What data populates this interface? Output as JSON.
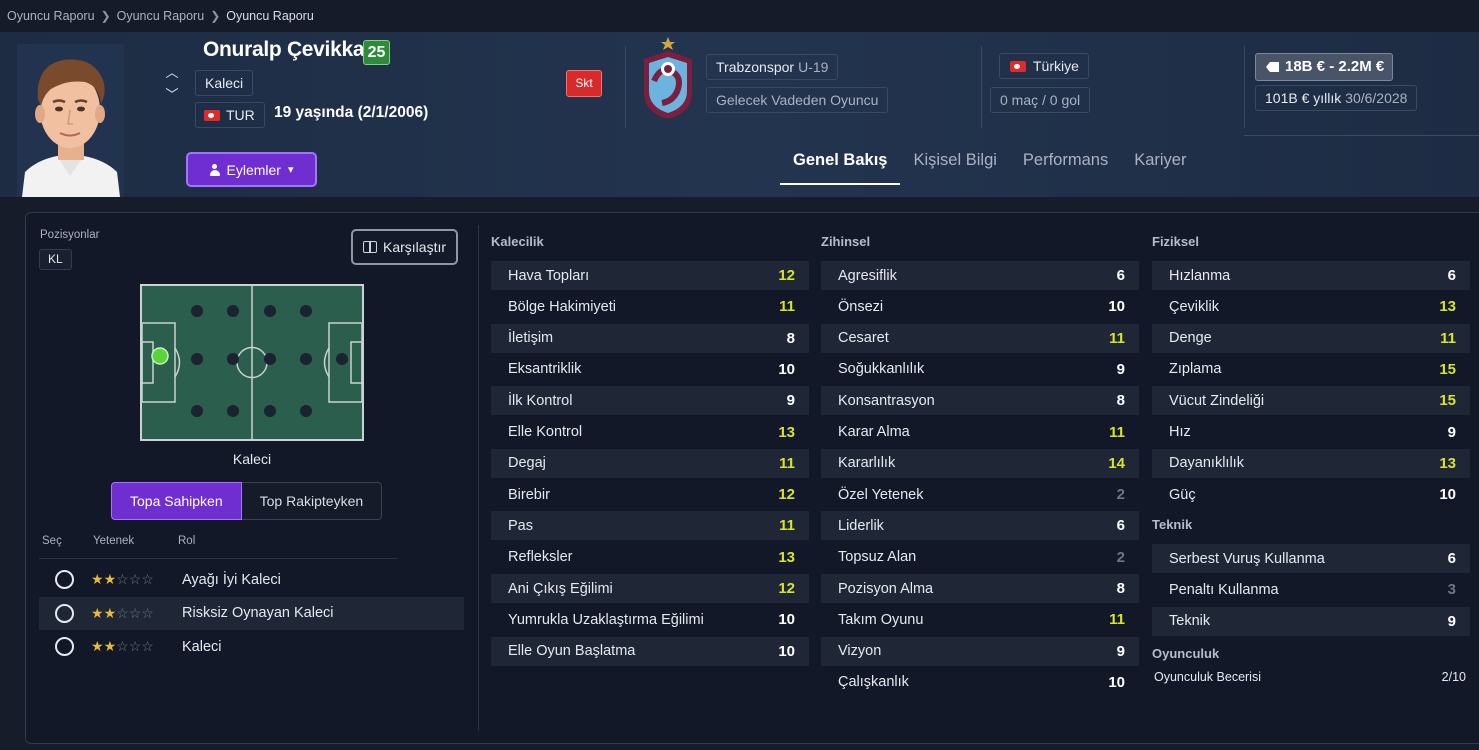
{
  "breadcrumb": [
    "Oyuncu Raporu",
    "Oyuncu Raporu",
    "Oyuncu Raporu"
  ],
  "player": {
    "name": "Onuralp Çevikkan",
    "ca": "25",
    "position": "Kaleci",
    "nationality_code": "TUR",
    "age_text": "19 yaşında (2/1/2006)",
    "injury_badge": "Skt",
    "club": "Trabzonspor",
    "squad": "U-19",
    "status": "Gelecek Vadeden Oyuncu",
    "country": "Türkiye",
    "apps": "0 maç / 0 gol",
    "value": "18B € - 2.2M €",
    "wage": "101B € yıllık",
    "contract_end": "30/6/2028"
  },
  "actions_label": "Eylemler",
  "tabs": [
    "Genel Bakış",
    "Kişisel Bilgi",
    "Performans",
    "Kariyer"
  ],
  "positions": {
    "label": "Pozisyonlar",
    "chip": "KL",
    "compare_label": "Karşılaştır",
    "pitch_label": "Kaleci"
  },
  "toggle": [
    "Topa Sahipken",
    "Top Rakipteyken"
  ],
  "roles": {
    "headers": [
      "Seç",
      "Yetenek",
      "Rol"
    ],
    "items": [
      {
        "name": "Ayağı İyi Kaleci",
        "stars": 2,
        "max": 5
      },
      {
        "name": "Risksiz Oynayan Kaleci",
        "stars": 2,
        "max": 5
      },
      {
        "name": "Kaleci",
        "stars": 2,
        "max": 5
      }
    ]
  },
  "colors": {
    "accent": "#6e2ed0",
    "high": "#d7e52f",
    "normal": "#ffffff",
    "low": "#6d7688"
  },
  "attributes": {
    "goalkeeping": {
      "title": "Kalecilik",
      "items": [
        {
          "name": "Hava Topları",
          "value": "12"
        },
        {
          "name": "Bölge Hakimiyeti",
          "value": "11"
        },
        {
          "name": "İletişim",
          "value": "8"
        },
        {
          "name": "Eksantriklik",
          "value": "10"
        },
        {
          "name": "İlk Kontrol",
          "value": "9"
        },
        {
          "name": "Elle Kontrol",
          "value": "13"
        },
        {
          "name": "Degaj",
          "value": "11"
        },
        {
          "name": "Birebir",
          "value": "12"
        },
        {
          "name": "Pas",
          "value": "11"
        },
        {
          "name": "Refleksler",
          "value": "13"
        },
        {
          "name": "Ani Çıkış Eğilimi",
          "value": "12"
        },
        {
          "name": "Yumrukla Uzaklaştırma Eğilimi",
          "value": "10"
        },
        {
          "name": "Elle Oyun Başlatma",
          "value": "10"
        }
      ]
    },
    "mental": {
      "title": "Zihinsel",
      "items": [
        {
          "name": "Agresiflik",
          "value": "6"
        },
        {
          "name": "Önsezi",
          "value": "10"
        },
        {
          "name": "Cesaret",
          "value": "11"
        },
        {
          "name": "Soğukkanlılık",
          "value": "9"
        },
        {
          "name": "Konsantrasyon",
          "value": "8"
        },
        {
          "name": "Karar Alma",
          "value": "11"
        },
        {
          "name": "Kararlılık",
          "value": "14"
        },
        {
          "name": "Özel Yetenek",
          "value": "2"
        },
        {
          "name": "Liderlik",
          "value": "6"
        },
        {
          "name": "Topsuz Alan",
          "value": "2"
        },
        {
          "name": "Pozisyon Alma",
          "value": "8"
        },
        {
          "name": "Takım Oyunu",
          "value": "11"
        },
        {
          "name": "Vizyon",
          "value": "9"
        },
        {
          "name": "Çalışkanlık",
          "value": "10"
        }
      ]
    },
    "physical": {
      "title": "Fiziksel",
      "items": [
        {
          "name": "Hızlanma",
          "value": "6"
        },
        {
          "name": "Çeviklik",
          "value": "13"
        },
        {
          "name": "Denge",
          "value": "11"
        },
        {
          "name": "Zıplama",
          "value": "15"
        },
        {
          "name": "Vücut Zindeliği",
          "value": "15"
        },
        {
          "name": "Hız",
          "value": "9"
        },
        {
          "name": "Dayanıklılık",
          "value": "13"
        },
        {
          "name": "Güç",
          "value": "10"
        }
      ]
    },
    "technical": {
      "title": "Teknik",
      "items": [
        {
          "name": "Serbest Vuruş Kullanma",
          "value": "6"
        },
        {
          "name": "Penaltı Kullanma",
          "value": "3"
        },
        {
          "name": "Teknik",
          "value": "9"
        }
      ]
    },
    "playing": {
      "title": "Oyunculuk",
      "label": "Oyunculuk Becerisi",
      "value": "2/10"
    }
  }
}
